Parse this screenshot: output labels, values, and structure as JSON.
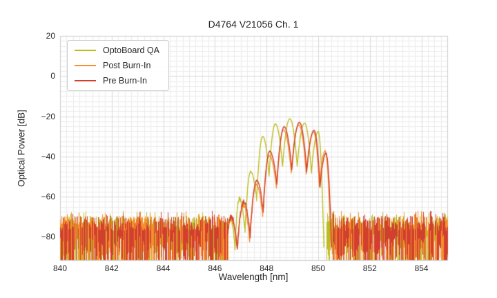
{
  "window": {
    "background": "#ffffff"
  },
  "chart_data": {
    "type": "line",
    "title": "D4764 V21056 Ch. 1",
    "xlabel": "Wavelength [nm]",
    "ylabel": "Optical Power [dB]",
    "xlim": [
      840,
      855
    ],
    "ylim": [
      -91.5,
      20
    ],
    "xticks": [
      840,
      842,
      844,
      846,
      848,
      850,
      852,
      854
    ],
    "yticks": [
      20,
      0,
      -20,
      -40,
      -60,
      -80
    ],
    "x_minor_step_nm": 0.25,
    "y_minor_step_dB": 2.5,
    "grid": {
      "shown": true,
      "minor_color": "#ececec",
      "major_color": "#d9d9d9",
      "spine_color": "#cccccc"
    },
    "legend_position": "upper left",
    "text_color": "#262626",
    "series": [
      {
        "name": "OptoBoard QA",
        "color": "#bcbd22",
        "seed": 11,
        "noise_column_keep": 1.0,
        "mode_peaks_nm_dB": [
          [
            846.6,
            -70.5
          ],
          [
            846.95,
            -61.0
          ],
          [
            847.38,
            -47.5
          ],
          [
            847.85,
            -30.0
          ],
          [
            848.34,
            -23.8
          ],
          [
            848.9,
            -21.2
          ],
          [
            849.47,
            -23.4
          ],
          [
            850.0,
            -27.6
          ]
        ],
        "noise_ranges_nm": [
          [
            840,
            846.47
          ],
          [
            850.32,
            855
          ]
        ]
      },
      {
        "name": "Post Burn-In",
        "color": "#f68f2e",
        "seed": 22,
        "noise_column_keep": 0.85,
        "mode_peaks_nm_dB": [
          [
            846.62,
            -71.0
          ],
          [
            847.09,
            -64.0
          ],
          [
            847.6,
            -54.0
          ],
          [
            848.1,
            -39.5
          ],
          [
            848.66,
            -26.8
          ],
          [
            849.25,
            -24.3
          ],
          [
            849.82,
            -27.8
          ],
          [
            850.27,
            -37.3
          ]
        ],
        "noise_ranges_nm": [
          [
            840,
            846.5
          ],
          [
            850.55,
            855
          ]
        ]
      },
      {
        "name": "Pre Burn-In",
        "color": "#d1402f",
        "seed": 33,
        "noise_column_keep": 0.8,
        "mode_peaks_nm_dB": [
          [
            846.63,
            -70.0
          ],
          [
            847.11,
            -62.5
          ],
          [
            847.62,
            -52.0
          ],
          [
            848.12,
            -37.5
          ],
          [
            848.68,
            -25.2
          ],
          [
            849.27,
            -23.0
          ],
          [
            849.84,
            -27.0
          ],
          [
            850.3,
            -38.5
          ]
        ],
        "noise_ranges_nm": [
          [
            840,
            846.52
          ],
          [
            850.55,
            855
          ]
        ]
      }
    ],
    "mode_shape": {
      "valley_drop_below_peak_mean_dB": 22.5,
      "valley_floor_dB": -86,
      "leading_edge_halfwidth_nm": 0.15,
      "trailing_edge_halfwidth_nm": 0.22,
      "leading_edge_level_dB": -80
    },
    "noise_floor": {
      "top_level_dB": -69.5,
      "top_jitter_dB": 7.5,
      "spike_top_dB": -67,
      "min_column_length_dB": 5,
      "column_length_jitter_dB": 24
    }
  }
}
